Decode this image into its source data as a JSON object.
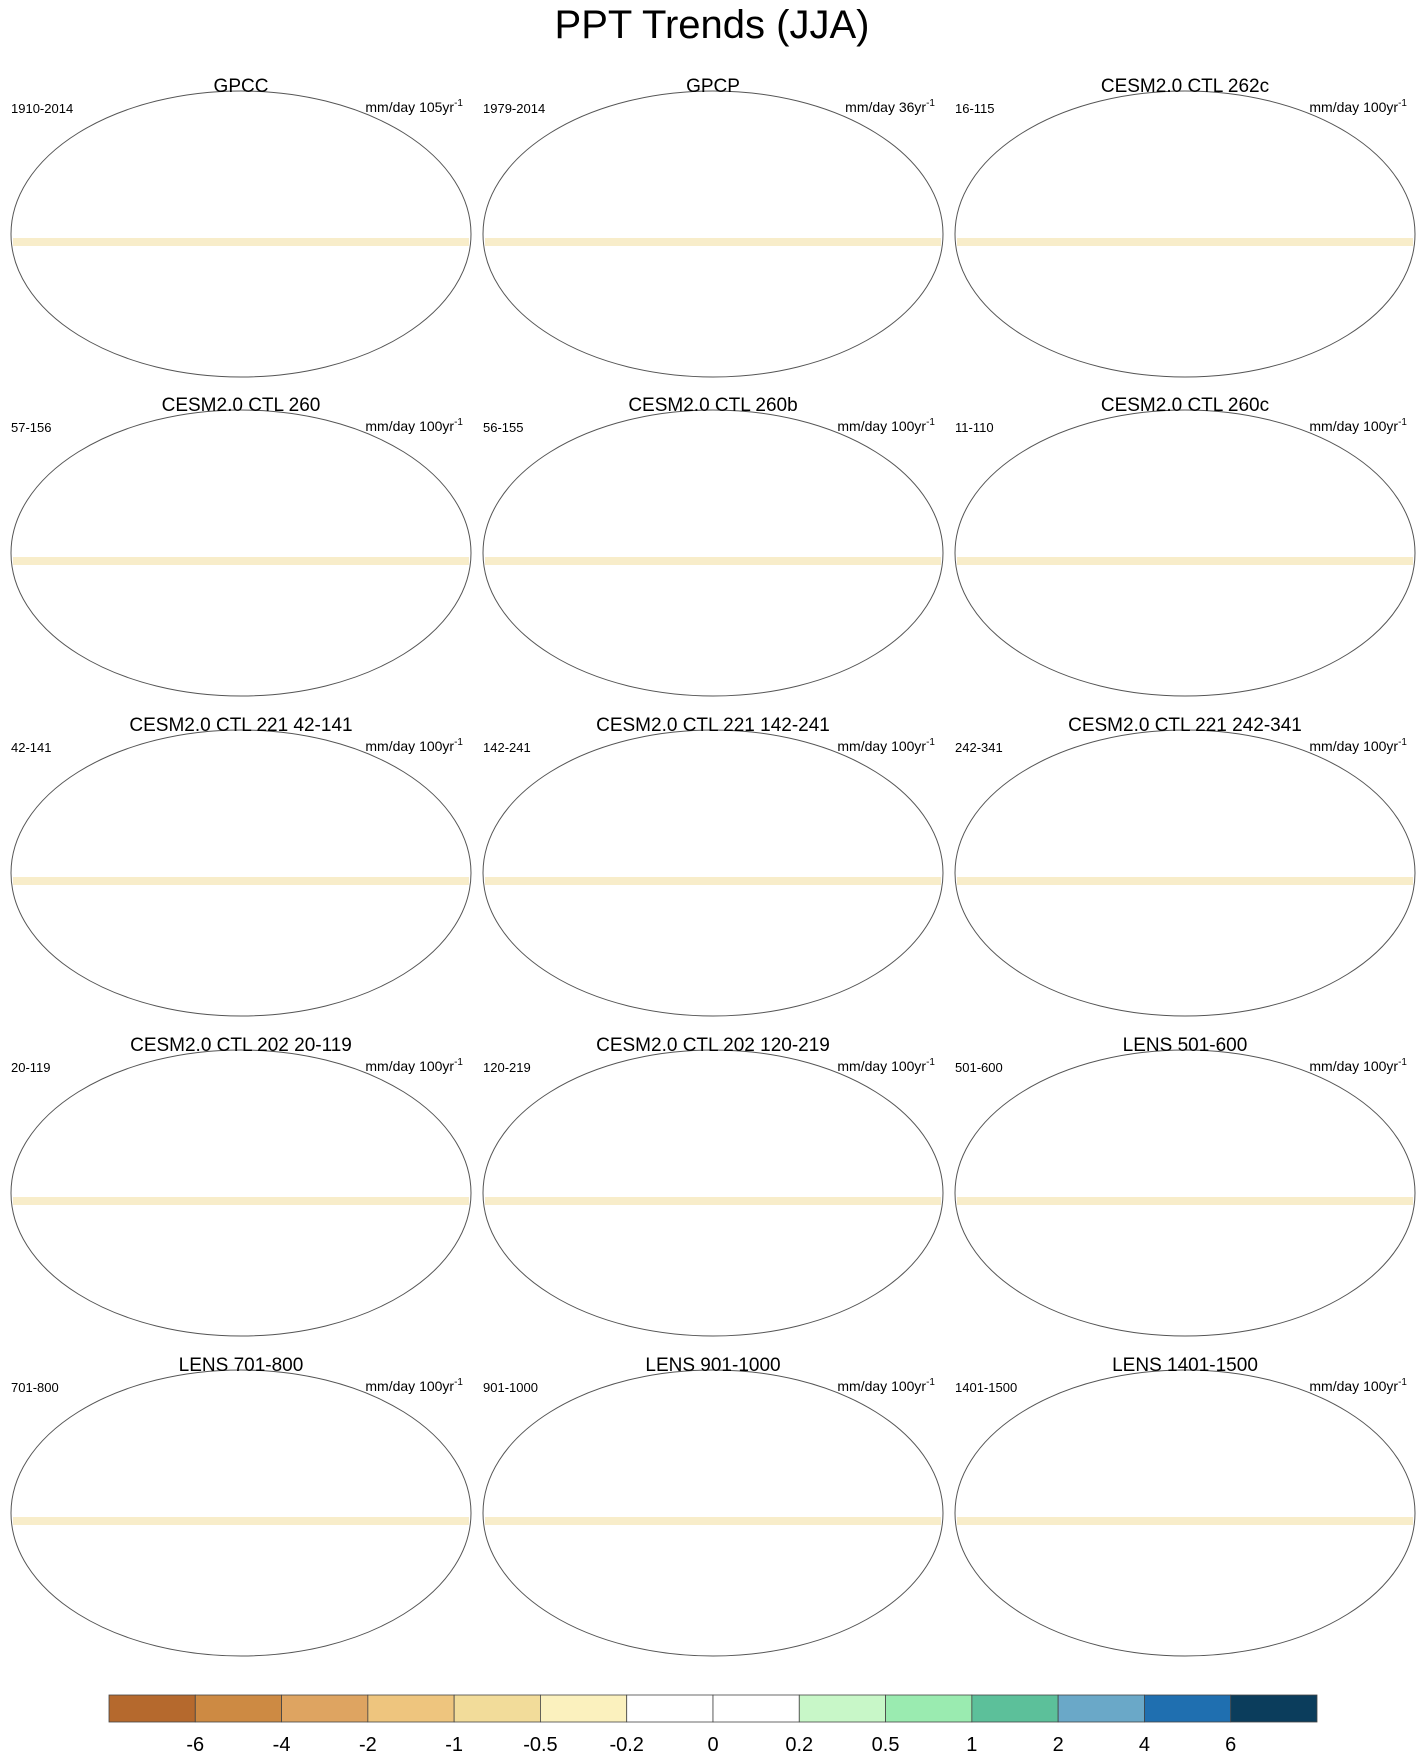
{
  "title": "PPT Trends (JJA)",
  "panels": [
    {
      "title": "GPCC",
      "period": "1910-2014",
      "units": "mm/day 105yr",
      "units_exp": "-1"
    },
    {
      "title": "GPCP",
      "period": "1979-2014",
      "units": "mm/day 36yr",
      "units_exp": "-1"
    },
    {
      "title": "CESM2.0 CTL 262c",
      "period": "16-115",
      "units": "mm/day 100yr",
      "units_exp": "-1"
    },
    {
      "title": "CESM2.0 CTL 260",
      "period": "57-156",
      "units": "mm/day 100yr",
      "units_exp": "-1"
    },
    {
      "title": "CESM2.0 CTL 260b",
      "period": "56-155",
      "units": "mm/day 100yr",
      "units_exp": "-1"
    },
    {
      "title": "CESM2.0 CTL 260c",
      "period": "11-110",
      "units": "mm/day 100yr",
      "units_exp": "-1"
    },
    {
      "title": "CESM2.0 CTL 221 42-141",
      "period": "42-141",
      "units": "mm/day 100yr",
      "units_exp": "-1"
    },
    {
      "title": "CESM2.0 CTL 221 142-241",
      "period": "142-241",
      "units": "mm/day 100yr",
      "units_exp": "-1"
    },
    {
      "title": "CESM2.0 CTL 221 242-341",
      "period": "242-341",
      "units": "mm/day 100yr",
      "units_exp": "-1"
    },
    {
      "title": "CESM2.0 CTL 202 20-119",
      "period": "20-119",
      "units": "mm/day 100yr",
      "units_exp": "-1"
    },
    {
      "title": "CESM2.0 CTL 202 120-219",
      "period": "120-219",
      "units": "mm/day 100yr",
      "units_exp": "-1"
    },
    {
      "title": "LENS 501-600",
      "period": "501-600",
      "units": "mm/day 100yr",
      "units_exp": "-1"
    },
    {
      "title": "LENS 701-800",
      "period": "701-800",
      "units": "mm/day 100yr",
      "units_exp": "-1"
    },
    {
      "title": "LENS 901-1000",
      "period": "901-1000",
      "units": "mm/day 100yr",
      "units_exp": "-1"
    },
    {
      "title": "LENS 1401-1500",
      "period": "1401-1500",
      "units": "mm/day 100yr",
      "units_exp": "-1"
    }
  ],
  "colorbar": {
    "levels": [
      -6,
      -4,
      -2,
      -1,
      -0.5,
      -0.2,
      0,
      0.2,
      0.5,
      1,
      2,
      4,
      6
    ],
    "colors": [
      "#b5692d",
      "#cd8a43",
      "#dea461",
      "#eec57e",
      "#f2dc9a",
      "#fbf1be",
      "#ffffff",
      "#ffffff",
      "#c8f7c8",
      "#9aebb0",
      "#5cc09a",
      "#6aa8c8",
      "#1f6fb0",
      "#0b3d5c"
    ]
  }
}
